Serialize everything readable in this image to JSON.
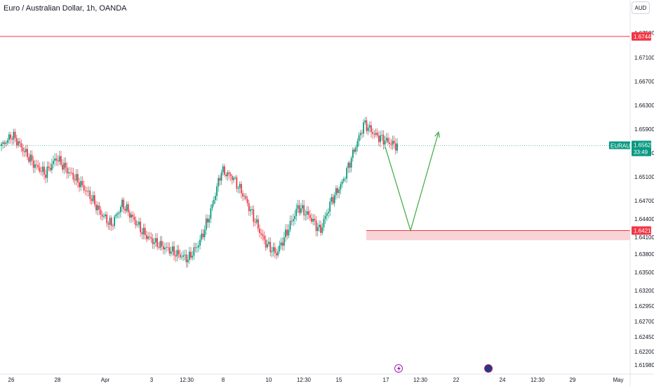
{
  "header": {
    "title": "Euro / Australian Dollar, 1h, OANDA",
    "currency_label": "AUD"
  },
  "chart_data": {
    "type": "candlestick",
    "title": "Euro / Australian Dollar, 1h, OANDA",
    "symbol": "EURAUD",
    "ylim": [
      1.6181,
      1.6768
    ],
    "y_ticks": [
      "1.67500",
      "1.67100",
      "1.66700",
      "1.66300",
      "1.65900",
      "1.65500",
      "1.65100",
      "1.64700",
      "1.64400",
      "1.64100",
      "1.63800",
      "1.63500",
      "1.63200",
      "1.62950",
      "1.62700",
      "1.62450",
      "1.62200",
      "1.61980"
    ],
    "x_ticks": [
      "26",
      "28",
      "Apr",
      "3",
      "12:30",
      "8",
      "10",
      "12:30",
      "15",
      "17",
      "12:30",
      "22",
      "24",
      "12:30",
      "29",
      "May"
    ],
    "current_price": {
      "symbol": "EURAUD",
      "price": "1.65624",
      "countdown": "33:49",
      "value": 1.65624
    },
    "resistance_line": {
      "label": "1.67445",
      "value": 1.67445
    },
    "support_zone": {
      "label": "1.64210",
      "top": 1.6421,
      "bottom": 1.64047
    },
    "price_path": [
      1.6562,
      1.658,
      1.6555,
      1.653,
      1.6515,
      1.6542,
      1.652,
      1.6502,
      1.648,
      1.645,
      1.643,
      1.6465,
      1.644,
      1.6415,
      1.64,
      1.639,
      1.638,
      1.6372,
      1.64,
      1.645,
      1.652,
      1.651,
      1.648,
      1.644,
      1.64,
      1.638,
      1.642,
      1.646,
      1.6445,
      1.642,
      1.647,
      1.65,
      1.655,
      1.66,
      1.658,
      1.657,
      1.6562
    ],
    "projection": [
      {
        "x": "17",
        "value": 1.656
      },
      {
        "x": "12:30",
        "value": 1.6421
      },
      {
        "x": "22",
        "value": 1.6585
      }
    ],
    "colors": {
      "up": "#089981",
      "down": "#f23645",
      "projection": "#4caf50",
      "zone": "#f7c6c9",
      "price_line": "#089981"
    },
    "grid": false
  }
}
